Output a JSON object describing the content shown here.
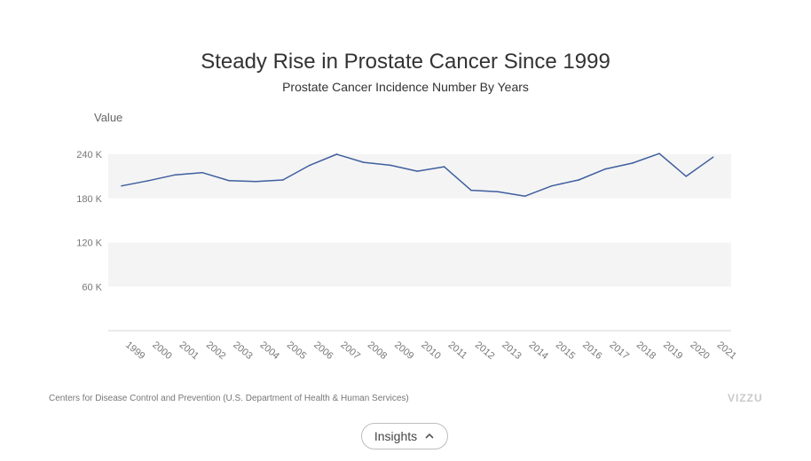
{
  "chart_data": {
    "type": "line",
    "title": "Steady Rise in Prostate Cancer Since 1999",
    "subtitle": "Prostate Cancer Incidence Number By Years",
    "ylabel": "Value",
    "xlabel": "",
    "ylim": [
      0,
      240000
    ],
    "yticks": [
      60000,
      120000,
      180000,
      240000
    ],
    "ytick_labels": [
      "60 K",
      "120 K",
      "180 K",
      "240 K"
    ],
    "grid": "alternating bands",
    "line_color": "#3f5f9e",
    "band_color": "#f4f4f4",
    "x": [
      "1999",
      "2000",
      "2001",
      "2002",
      "2003",
      "2004",
      "2005",
      "2006",
      "2007",
      "2008",
      "2009",
      "2010",
      "2011",
      "2012",
      "2013",
      "2014",
      "2015",
      "2016",
      "2017",
      "2018",
      "2019",
      "2020",
      "2021"
    ],
    "series": [
      {
        "values": [
          197000,
          204000,
          212000,
          215000,
          204000,
          203000,
          205000,
          225000,
          240000,
          229000,
          225000,
          217000,
          223000,
          191000,
          189000,
          183000,
          197000,
          205000,
          220000,
          228000,
          241000,
          210000,
          236000
        ]
      }
    ]
  },
  "footer": {
    "source": "Centers for Disease Control and Prevention (U.S. Department of Health & Human Services)",
    "logo_text": "VIZZU",
    "insights_label": "Insights"
  }
}
